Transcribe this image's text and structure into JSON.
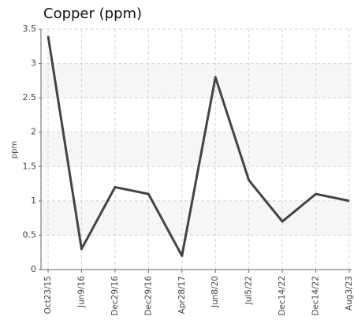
{
  "chart_data": {
    "type": "line",
    "title": "Copper (ppm)",
    "y_label": "ppm",
    "categories": [
      "Oct23/15",
      "Jun9/16",
      "Dec29/16",
      "Dec29/16",
      "Apr28/17",
      "Jun8/20",
      "Jul5/22",
      "Dec14/22",
      "Dec14/22",
      "Aug3/23"
    ],
    "series": [
      {
        "name": "Copper",
        "color": "#444444",
        "values": [
          3.4,
          0.3,
          1.2,
          1.1,
          0.2,
          2.8,
          1.3,
          0.7,
          1.1,
          1.0
        ]
      }
    ],
    "ylim": [
      0,
      3.5
    ],
    "yticks": [
      0,
      0.5,
      1,
      1.5,
      2,
      2.5,
      3,
      3.5
    ],
    "grid": true
  }
}
